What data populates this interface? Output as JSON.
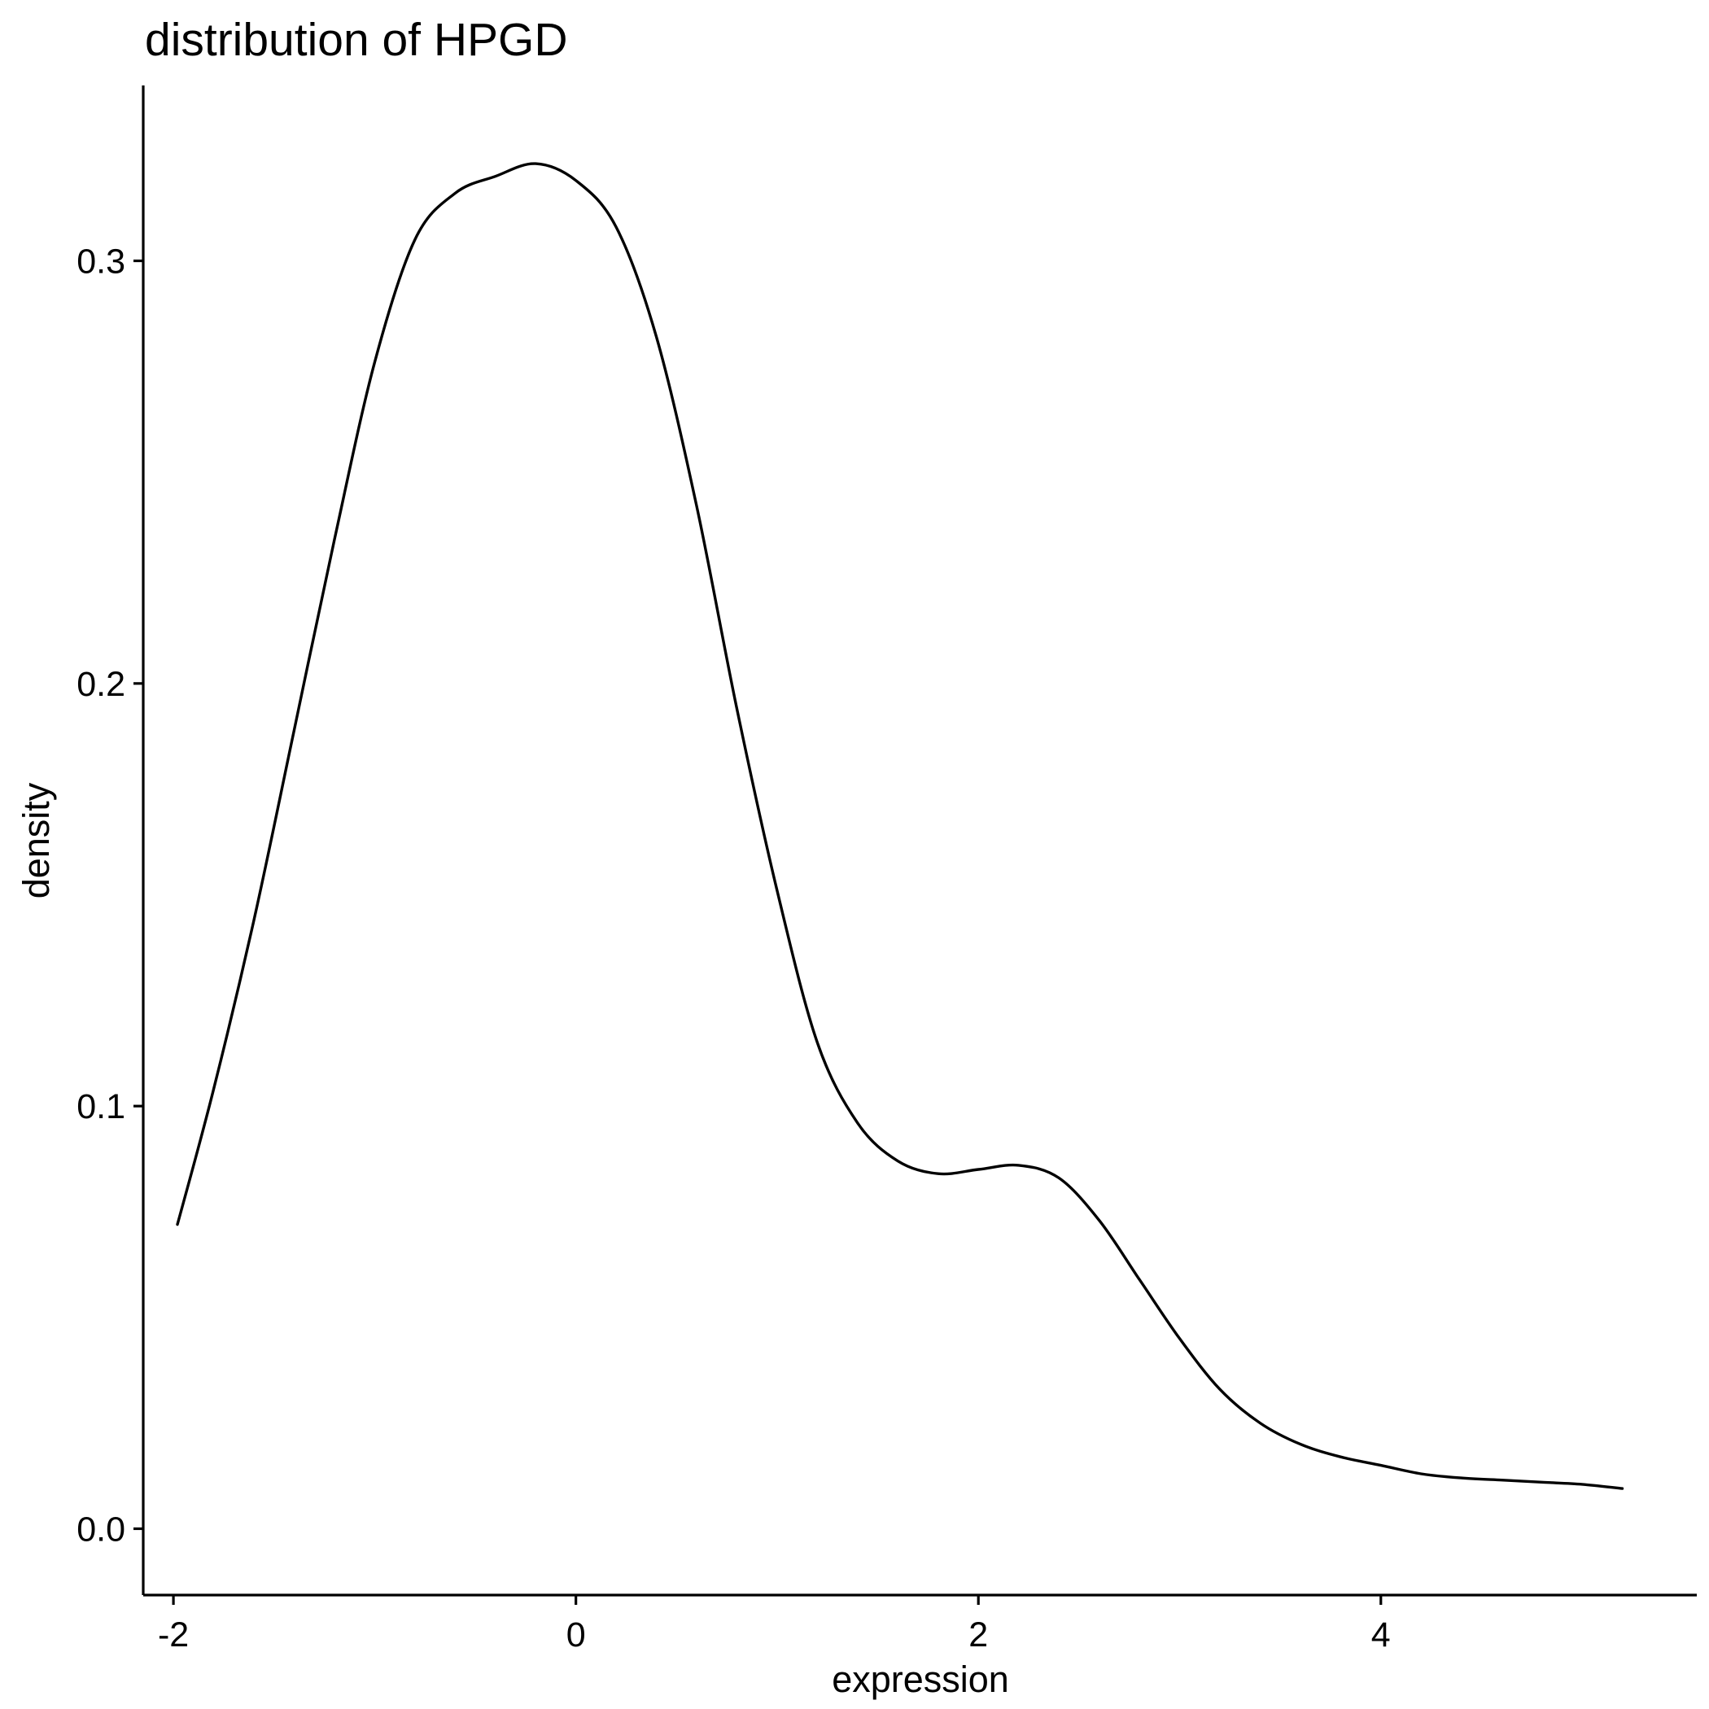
{
  "chart_data": {
    "type": "line",
    "title": "distribution of HPGD",
    "xlabel": "expression",
    "ylabel": "density",
    "xlim": [
      -2.15,
      5.57
    ],
    "ylim": [
      -0.0157,
      0.3415
    ],
    "x_ticks": [
      -2,
      0,
      2,
      4
    ],
    "x_tick_labels": [
      "-2",
      "0",
      "2",
      "4"
    ],
    "y_ticks": [
      0.0,
      0.1,
      0.2,
      0.3
    ],
    "y_tick_labels": [
      "0.0",
      "0.1",
      "0.2",
      "0.3"
    ],
    "grid": false,
    "legend": "none",
    "line_color": "#000000",
    "series": [
      {
        "x": [
          -1.98,
          -1.8,
          -1.6,
          -1.4,
          -1.2,
          -1.0,
          -0.8,
          -0.6,
          -0.4,
          -0.2,
          0.0,
          0.2,
          0.4,
          0.6,
          0.8,
          1.0,
          1.2,
          1.4,
          1.6,
          1.8,
          2.0,
          2.2,
          2.4,
          2.6,
          2.8,
          3.0,
          3.2,
          3.4,
          3.6,
          3.8,
          4.0,
          4.2,
          4.4,
          4.6,
          4.8,
          5.0,
          5.2
        ],
        "y": [
          0.072,
          0.104,
          0.144,
          0.189,
          0.234,
          0.276,
          0.305,
          0.316,
          0.32,
          0.323,
          0.319,
          0.308,
          0.282,
          0.242,
          0.194,
          0.151,
          0.115,
          0.096,
          0.087,
          0.084,
          0.085,
          0.086,
          0.083,
          0.073,
          0.059,
          0.045,
          0.033,
          0.025,
          0.02,
          0.017,
          0.015,
          0.013,
          0.012,
          0.0115,
          0.011,
          0.0105,
          0.0095
        ]
      }
    ]
  }
}
